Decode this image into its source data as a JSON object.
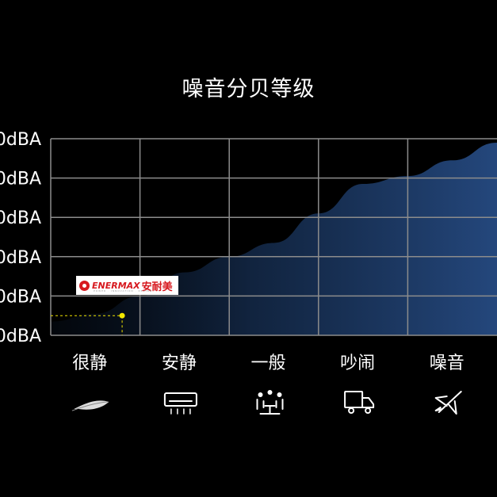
{
  "title": "噪音分贝等级",
  "brand": {
    "name": "ENERMAX",
    "name_cn": "安耐美",
    "slogan": "POWER · INNOVATION · DESIGN"
  },
  "colors": {
    "background": "#000000",
    "area_fill": "#1f3e6e",
    "grid": "#8c8c8c",
    "marker": "#f2e600",
    "text": "#ffffff"
  },
  "chart_data": {
    "type": "area",
    "title": "噪音分贝等级",
    "y_tick_labels": [
      "0dBA",
      "0dBA",
      "0dBA",
      "0dBA",
      "0dBA",
      "0dBA"
    ],
    "y_ticks": [
      0,
      1,
      2,
      3,
      4,
      5
    ],
    "ylim": [
      0,
      5
    ],
    "categories": [
      "很静",
      "安静",
      "一般",
      "吵闹",
      "噪音"
    ],
    "category_icons": [
      "feather-icon",
      "air-conditioner-icon",
      "people-meeting-icon",
      "truck-icon",
      "airplane-icon"
    ],
    "xlim": [
      0,
      5
    ],
    "grid": true,
    "series": [
      {
        "x": [
          0,
          0.5,
          1,
          1.5,
          2,
          2.5,
          3,
          3.5,
          4,
          4.5,
          5
        ],
        "values": [
          0.35,
          0.55,
          1.0,
          1.6,
          2.0,
          2.35,
          3.1,
          3.85,
          4.05,
          4.45,
          4.9
        ]
      }
    ],
    "marker": {
      "x": 0.8,
      "y": 0.5,
      "label": "ENERMAX 安耐美"
    }
  }
}
